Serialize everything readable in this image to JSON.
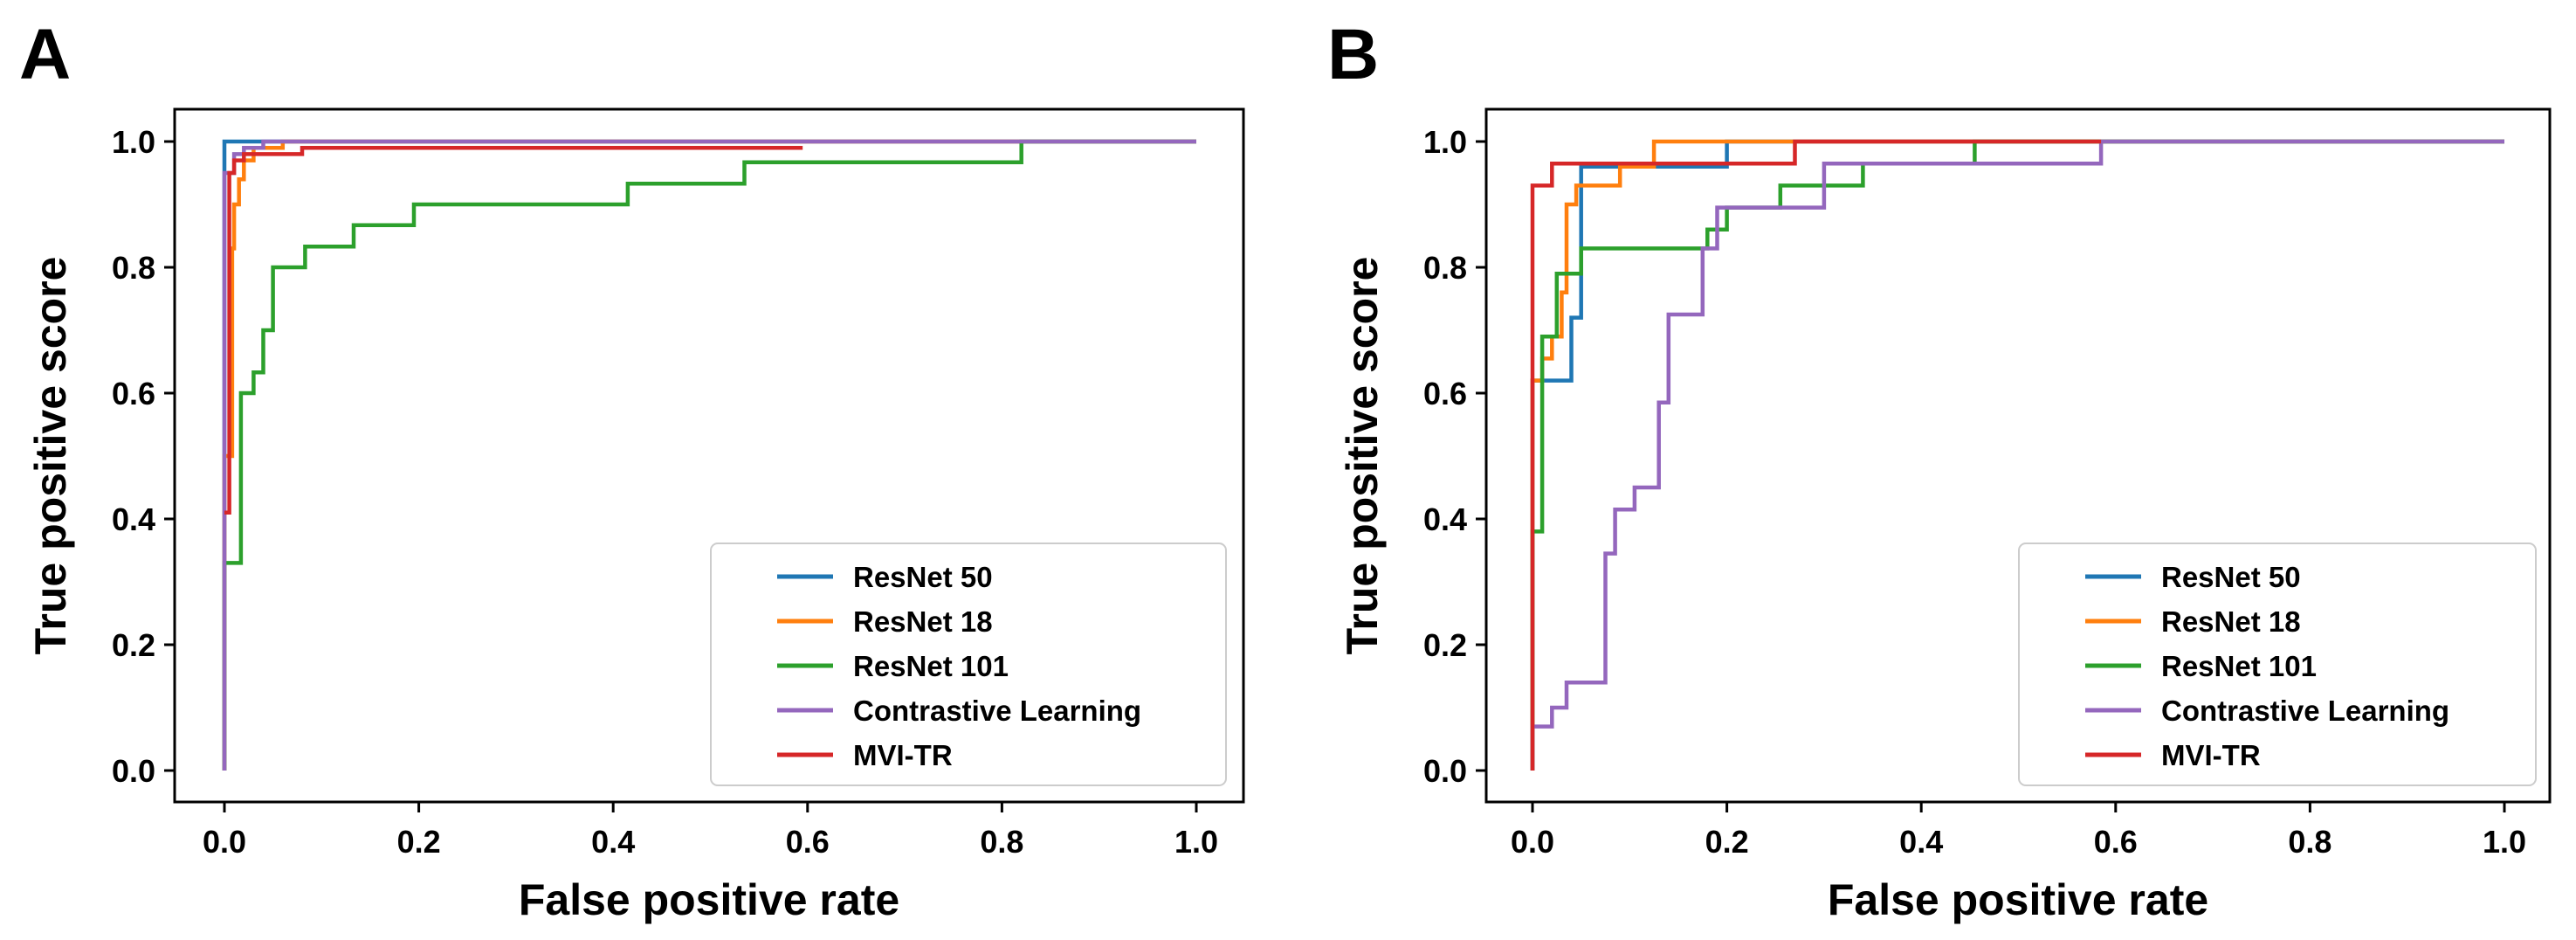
{
  "chart_data": [
    {
      "type": "line",
      "panel_label": "A",
      "xlabel": "False positive rate",
      "ylabel": "True positive score",
      "xlim": [
        0.0,
        1.0
      ],
      "ylim": [
        0.0,
        1.0
      ],
      "xticks": [
        "0.0",
        "0.2",
        "0.4",
        "0.6",
        "0.8",
        "1.0"
      ],
      "yticks": [
        "0.0",
        "0.2",
        "0.4",
        "0.6",
        "0.8",
        "1.0"
      ],
      "grid": false,
      "legend_position": "lower-right",
      "series": [
        {
          "name": "ResNet 50",
          "color": "#1f77b4",
          "points": [
            [
              0,
              0
            ],
            [
              0,
              1.0
            ],
            [
              1.0,
              1.0
            ]
          ]
        },
        {
          "name": "ResNet 18",
          "color": "#ff7f0e",
          "points": [
            [
              0,
              0
            ],
            [
              0,
              0.5
            ],
            [
              0.008,
              0.5
            ],
            [
              0.008,
              0.83
            ],
            [
              0.01,
              0.83
            ],
            [
              0.01,
              0.9
            ],
            [
              0.015,
              0.9
            ],
            [
              0.015,
              0.94
            ],
            [
              0.02,
              0.94
            ],
            [
              0.02,
              0.97
            ],
            [
              0.03,
              0.97
            ],
            [
              0.03,
              0.99
            ],
            [
              0.06,
              0.99
            ],
            [
              0.06,
              1.0
            ],
            [
              1.0,
              1.0
            ]
          ]
        },
        {
          "name": "ResNet 101",
          "color": "#2ca02c",
          "points": [
            [
              0,
              0
            ],
            [
              0,
              0.33
            ],
            [
              0.017,
              0.33
            ],
            [
              0.017,
              0.6
            ],
            [
              0.03,
              0.6
            ],
            [
              0.03,
              0.633
            ],
            [
              0.04,
              0.633
            ],
            [
              0.04,
              0.7
            ],
            [
              0.05,
              0.7
            ],
            [
              0.05,
              0.8
            ],
            [
              0.083,
              0.8
            ],
            [
              0.083,
              0.833
            ],
            [
              0.133,
              0.833
            ],
            [
              0.133,
              0.867
            ],
            [
              0.195,
              0.867
            ],
            [
              0.195,
              0.9
            ],
            [
              0.415,
              0.9
            ],
            [
              0.415,
              0.933
            ],
            [
              0.535,
              0.933
            ],
            [
              0.535,
              0.967
            ],
            [
              0.82,
              0.967
            ],
            [
              0.82,
              1.0
            ],
            [
              1.0,
              1.0
            ]
          ]
        },
        {
          "name": "Contrastive Learning",
          "color": "#9467bd",
          "points": [
            [
              0,
              0
            ],
            [
              0,
              0.95
            ],
            [
              0.01,
              0.95
            ],
            [
              0.01,
              0.98
            ],
            [
              0.02,
              0.98
            ],
            [
              0.02,
              0.99
            ],
            [
              0.04,
              0.99
            ],
            [
              0.04,
              1.0
            ],
            [
              1.0,
              1.0
            ]
          ]
        },
        {
          "name": "MVI-TR",
          "color": "#d62728",
          "points": [
            [
              0,
              0.41
            ],
            [
              0.005,
              0.41
            ],
            [
              0.005,
              0.95
            ],
            [
              0.01,
              0.95
            ],
            [
              0.01,
              0.97
            ],
            [
              0.02,
              0.97
            ],
            [
              0.02,
              0.98
            ],
            [
              0.08,
              0.98
            ],
            [
              0.08,
              0.99
            ],
            [
              0.595,
              0.99
            ]
          ]
        }
      ]
    },
    {
      "type": "line",
      "panel_label": "B",
      "xlabel": "False positive rate",
      "ylabel": "True positive score",
      "xlim": [
        0.0,
        1.0
      ],
      "ylim": [
        0.0,
        1.0
      ],
      "xticks": [
        "0.0",
        "0.2",
        "0.4",
        "0.6",
        "0.8",
        "1.0"
      ],
      "yticks": [
        "0.0",
        "0.2",
        "0.4",
        "0.6",
        "0.8",
        "1.0"
      ],
      "grid": false,
      "legend_position": "lower-right",
      "series": [
        {
          "name": "ResNet 50",
          "color": "#1f77b4",
          "points": [
            [
              0,
              0
            ],
            [
              0,
              0.62
            ],
            [
              0.04,
              0.62
            ],
            [
              0.04,
              0.72
            ],
            [
              0.05,
              0.72
            ],
            [
              0.05,
              0.96
            ],
            [
              0.2,
              0.96
            ],
            [
              0.2,
              1.0
            ],
            [
              1.0,
              1.0
            ]
          ]
        },
        {
          "name": "ResNet 18",
          "color": "#ff7f0e",
          "points": [
            [
              0,
              0
            ],
            [
              0,
              0.62
            ],
            [
              0.01,
              0.62
            ],
            [
              0.01,
              0.655
            ],
            [
              0.02,
              0.655
            ],
            [
              0.02,
              0.69
            ],
            [
              0.03,
              0.69
            ],
            [
              0.03,
              0.76
            ],
            [
              0.035,
              0.76
            ],
            [
              0.035,
              0.9
            ],
            [
              0.045,
              0.9
            ],
            [
              0.045,
              0.93
            ],
            [
              0.09,
              0.93
            ],
            [
              0.09,
              0.96
            ],
            [
              0.125,
              0.96
            ],
            [
              0.125,
              1.0
            ],
            [
              1.0,
              1.0
            ]
          ]
        },
        {
          "name": "ResNet 101",
          "color": "#2ca02c",
          "points": [
            [
              0,
              0
            ],
            [
              0,
              0.38
            ],
            [
              0.01,
              0.38
            ],
            [
              0.01,
              0.69
            ],
            [
              0.025,
              0.69
            ],
            [
              0.025,
              0.79
            ],
            [
              0.05,
              0.79
            ],
            [
              0.05,
              0.83
            ],
            [
              0.18,
              0.83
            ],
            [
              0.18,
              0.86
            ],
            [
              0.2,
              0.86
            ],
            [
              0.2,
              0.895
            ],
            [
              0.255,
              0.895
            ],
            [
              0.255,
              0.93
            ],
            [
              0.34,
              0.93
            ],
            [
              0.34,
              0.965
            ],
            [
              0.455,
              0.965
            ],
            [
              0.455,
              1.0
            ],
            [
              1.0,
              1.0
            ]
          ]
        },
        {
          "name": "Contrastive Learning",
          "color": "#9467bd",
          "points": [
            [
              0,
              0
            ],
            [
              0,
              0.07
            ],
            [
              0.02,
              0.07
            ],
            [
              0.02,
              0.1
            ],
            [
              0.035,
              0.1
            ],
            [
              0.035,
              0.14
            ],
            [
              0.075,
              0.14
            ],
            [
              0.075,
              0.345
            ],
            [
              0.085,
              0.345
            ],
            [
              0.085,
              0.415
            ],
            [
              0.105,
              0.415
            ],
            [
              0.105,
              0.45
            ],
            [
              0.13,
              0.45
            ],
            [
              0.13,
              0.585
            ],
            [
              0.14,
              0.585
            ],
            [
              0.14,
              0.725
            ],
            [
              0.175,
              0.725
            ],
            [
              0.175,
              0.83
            ],
            [
              0.19,
              0.83
            ],
            [
              0.19,
              0.895
            ],
            [
              0.3,
              0.895
            ],
            [
              0.3,
              0.965
            ],
            [
              0.585,
              0.965
            ],
            [
              0.585,
              1.0
            ],
            [
              1.0,
              1.0
            ]
          ]
        },
        {
          "name": "MVI-TR",
          "color": "#d62728",
          "points": [
            [
              0,
              0
            ],
            [
              0,
              0.93
            ],
            [
              0.02,
              0.93
            ],
            [
              0.02,
              0.965
            ],
            [
              0.27,
              0.965
            ],
            [
              0.27,
              1.0
            ],
            [
              0.585,
              1.0
            ]
          ]
        }
      ]
    }
  ]
}
